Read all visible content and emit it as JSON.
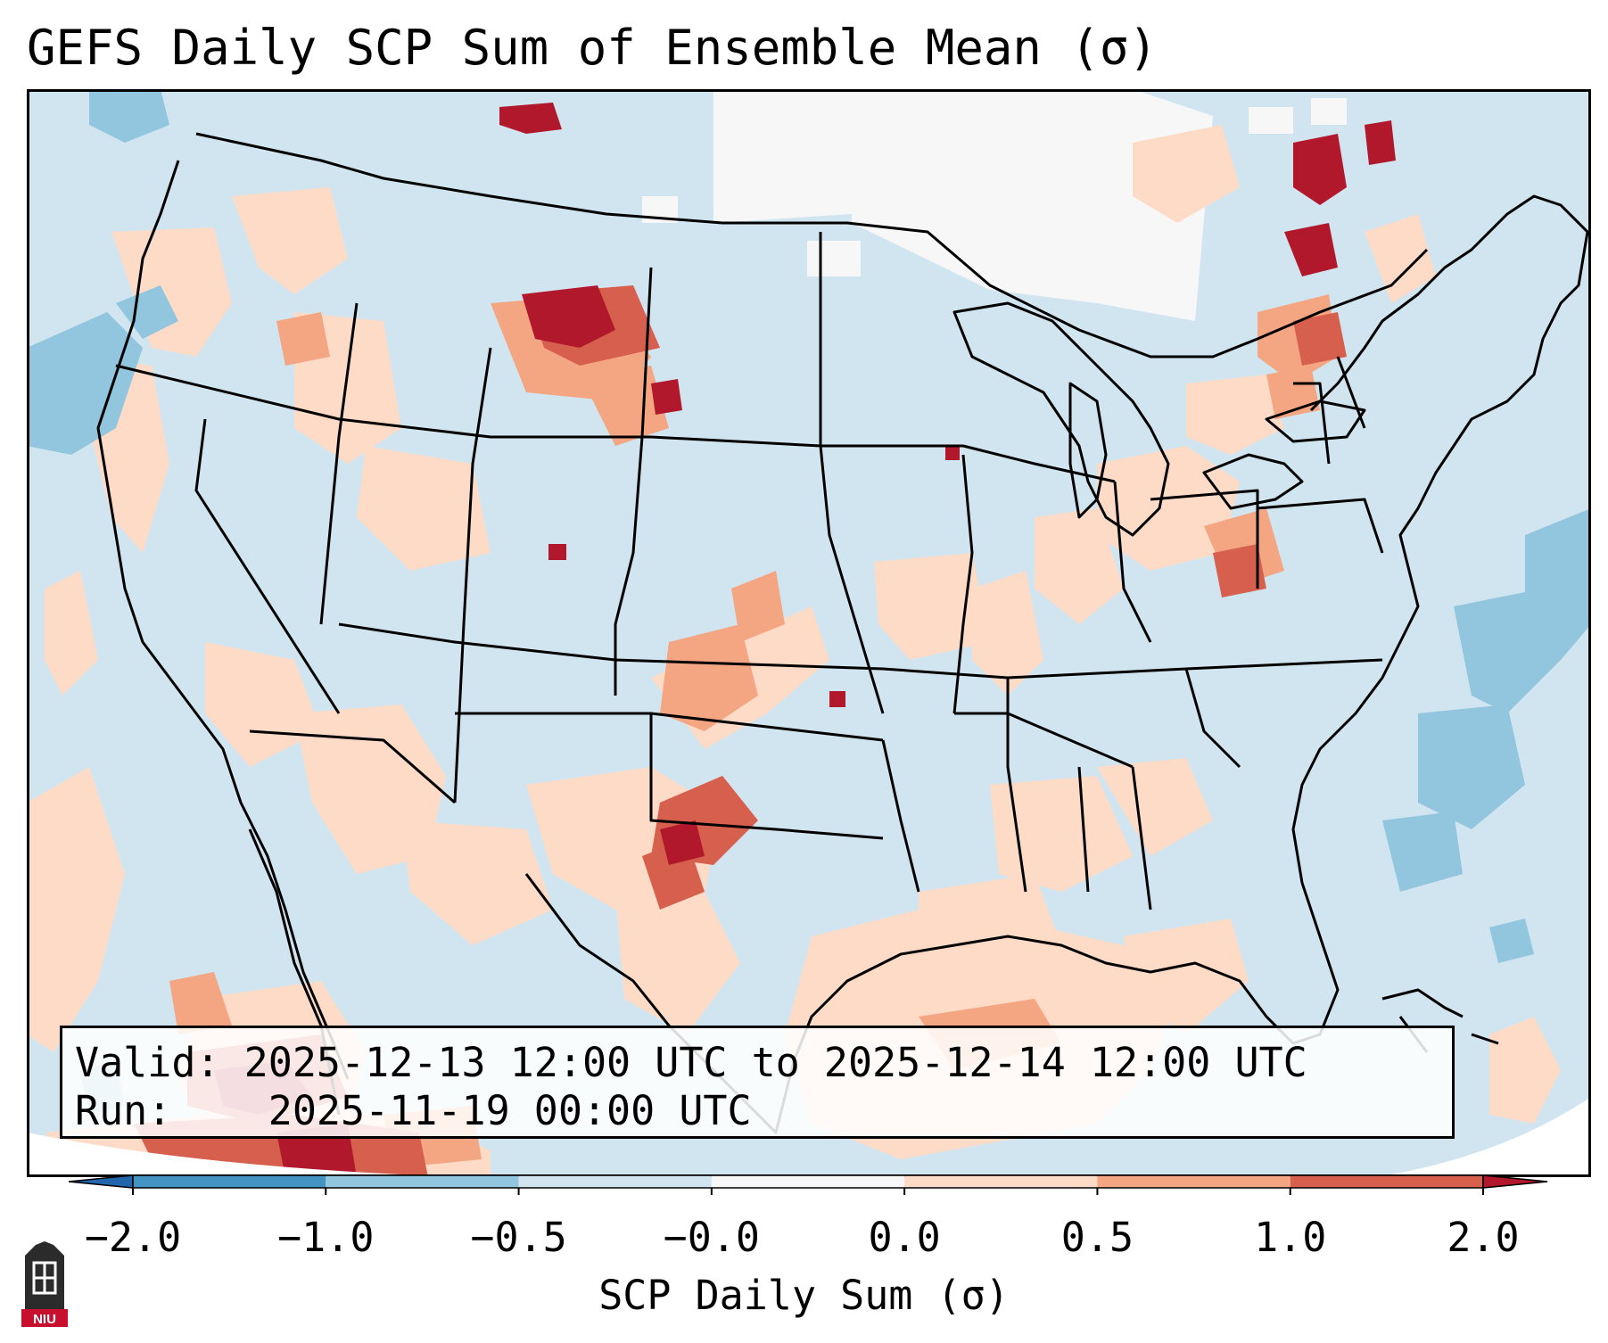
{
  "title": "GEFS Daily SCP Sum of Ensemble Mean (σ)",
  "info": {
    "valid_label": "Valid:",
    "valid_value": "2025-12-13 12:00 UTC to 2025-12-14 12:00 UTC",
    "run_label": "Run:",
    "run_value": "2025-11-19 00:00 UTC"
  },
  "colorbar": {
    "label": "SCP Daily Sum (σ)",
    "bounds": [
      -2.0,
      -1.0,
      -0.5,
      -0.0,
      0.0,
      0.5,
      1.0,
      2.0
    ],
    "tick_labels": [
      "−2.0",
      "−1.0",
      "−0.5",
      "−0.0",
      "0.0",
      "0.5",
      "1.0",
      "2.0"
    ],
    "colors": [
      "#4393c3",
      "#92c5de",
      "#d1e5f0",
      "#f7f7f7",
      "#fddbc7",
      "#f4a582",
      "#d6604d"
    ],
    "under_color": "#2166ac",
    "over_color": "#b2182b"
  },
  "map_colors": {
    "background": "#d1e5f0",
    "neutral": "#f7f7f7",
    "light_pos": "#fddbc7",
    "mid_pos": "#f4a582",
    "high_pos": "#d6604d",
    "very_high": "#b2182b",
    "light_neg": "#92c5de"
  },
  "logo": {
    "text": "NIU",
    "color": "#c8102e"
  }
}
